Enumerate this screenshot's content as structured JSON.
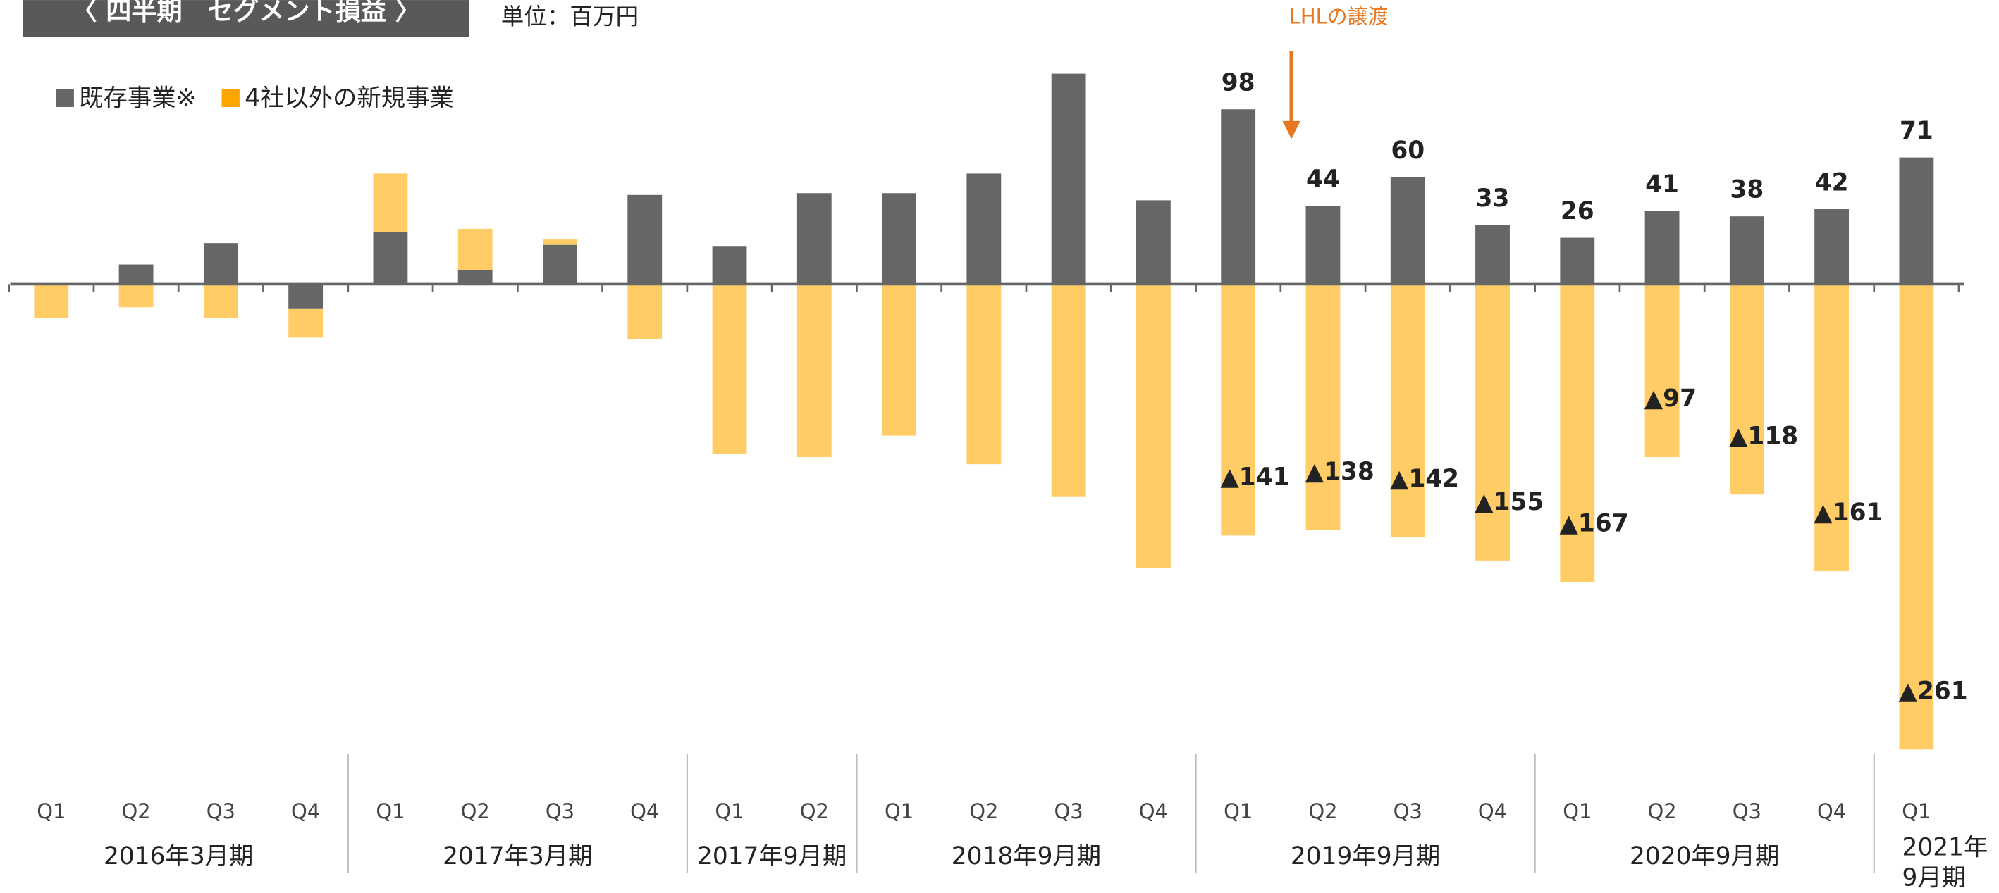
{
  "chart_data": {
    "type": "bar",
    "stacked": true,
    "title": "〈 四半期　セグメント損益 〉",
    "subtitle": "単位：百万円",
    "annotation": "LHLの譲渡",
    "groups": [
      {
        "label": "2016年3月期",
        "quarters": [
          "Q1",
          "Q2",
          "Q3",
          "Q4"
        ]
      },
      {
        "label": "2017年3月期",
        "quarters": [
          "Q1",
          "Q2",
          "Q3",
          "Q4"
        ]
      },
      {
        "label": "2017年9月期",
        "quarters": [
          "Q1",
          "Q2"
        ]
      },
      {
        "label": "2018年9月期",
        "quarters": [
          "Q1",
          "Q2",
          "Q3",
          "Q4"
        ]
      },
      {
        "label": "2019年9月期",
        "quarters": [
          "Q1",
          "Q2",
          "Q3",
          "Q4"
        ]
      },
      {
        "label": "2020年9月期",
        "quarters": [
          "Q1",
          "Q2",
          "Q3",
          "Q4"
        ]
      },
      {
        "label": "2021年\n9月期",
        "quarters": [
          "Q1"
        ]
      }
    ],
    "series": [
      {
        "name": "既存事業※",
        "color": "#666666",
        "legend_color": "#666666",
        "values": [
          0,
          11,
          23,
          -14,
          29,
          8,
          22,
          50,
          21,
          51,
          51,
          62,
          118,
          47,
          98,
          44,
          60,
          33,
          26,
          41,
          38,
          42,
          71
        ],
        "value_labels": [
          null,
          null,
          null,
          null,
          null,
          null,
          null,
          null,
          null,
          null,
          null,
          null,
          null,
          null,
          "98",
          "44",
          "60",
          "33",
          "26",
          "41",
          "38",
          "42",
          "71"
        ]
      },
      {
        "name": "4社以外の新規事業",
        "color": "#FFCC66",
        "legend_color": "#FFA500",
        "values": [
          -19,
          -13,
          -19,
          -16,
          33,
          23,
          3,
          -31,
          -95,
          -97,
          -85,
          -101,
          -119,
          -159,
          -141,
          -138,
          -142,
          -155,
          -167,
          -97,
          -118,
          -161,
          -261
        ],
        "value_labels": [
          null,
          null,
          null,
          null,
          null,
          null,
          null,
          null,
          null,
          null,
          null,
          null,
          null,
          null,
          "▲141",
          "▲138",
          "▲142",
          "▲155",
          "▲167",
          "▲97",
          "▲118",
          "▲161",
          "▲261"
        ]
      }
    ],
    "ylim": [
      -270,
      125
    ],
    "legend": "top-left"
  }
}
